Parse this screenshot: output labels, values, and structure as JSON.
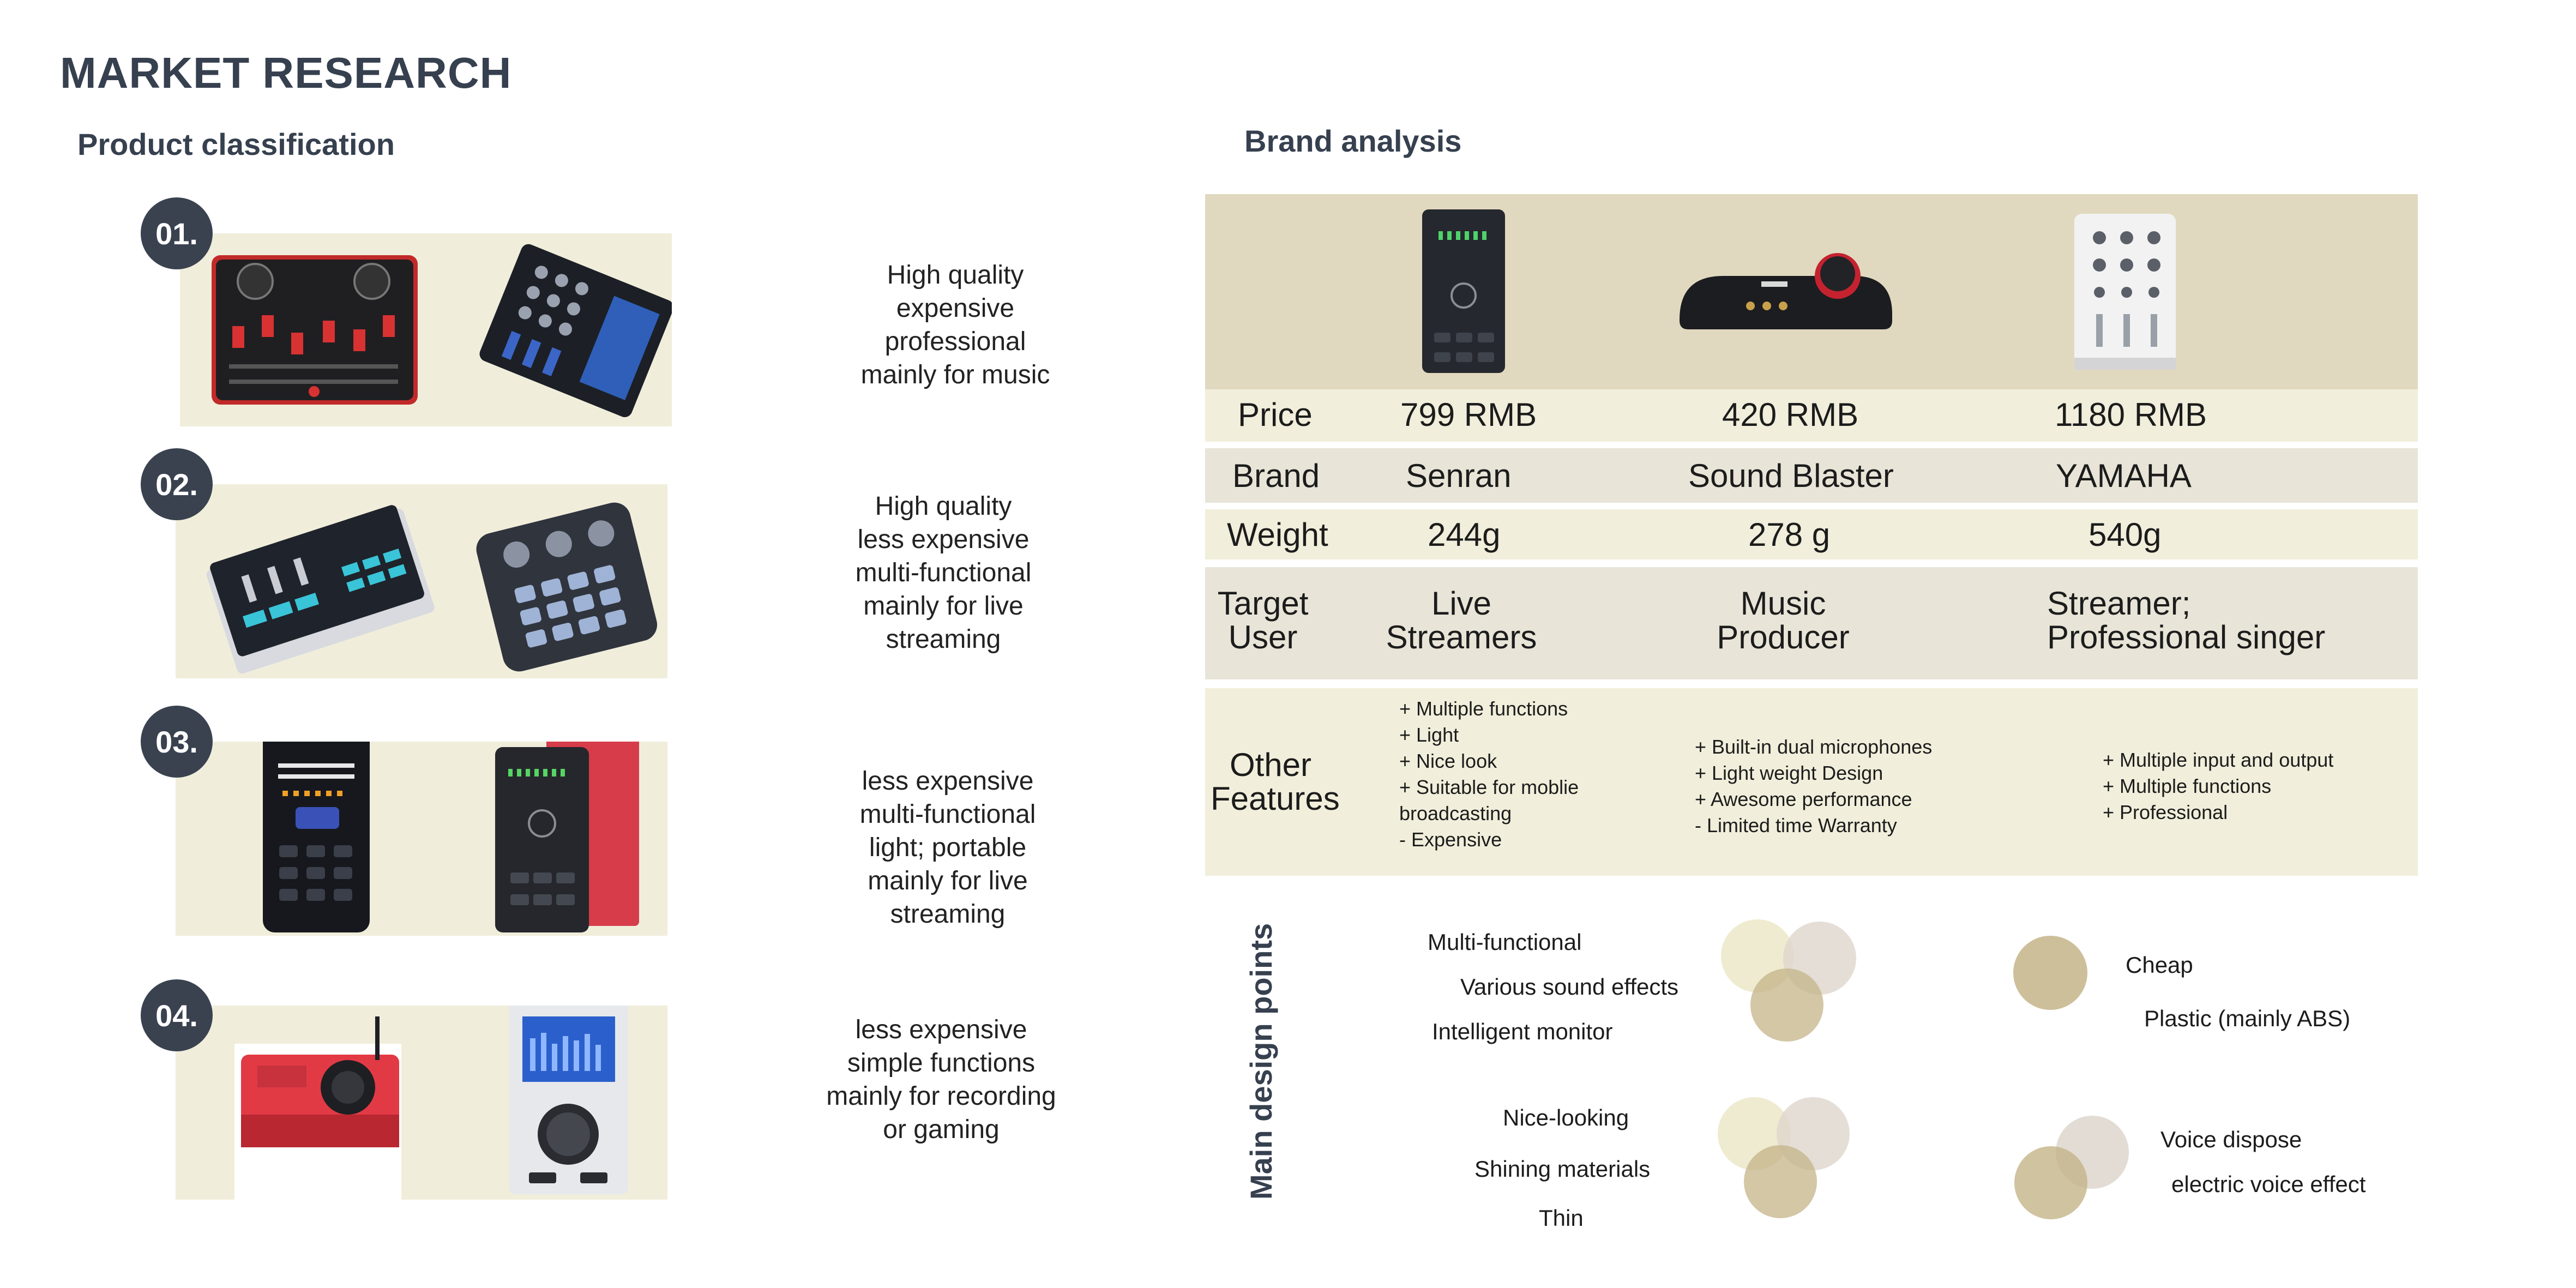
{
  "page": {
    "title": "MARKET RESEARCH",
    "left_heading": "Product classification",
    "right_heading": "Brand analysis"
  },
  "classification": [
    {
      "number": "01.",
      "description": [
        "High quality",
        "expensive",
        "professional",
        "mainly for music"
      ]
    },
    {
      "number": "02.",
      "description": [
        "High quality",
        "less expensive",
        "multi-functional",
        "mainly for live",
        "streaming"
      ]
    },
    {
      "number": "03.",
      "description": [
        "less expensive",
        "multi-functional",
        "light; portable",
        "mainly for live",
        "streaming"
      ]
    },
    {
      "number": "04.",
      "description": [
        "less expensive",
        "simple functions",
        "mainly for recording",
        "or gaming"
      ]
    }
  ],
  "brand_table": {
    "price": {
      "label": "Price",
      "values": [
        "799 RMB",
        "420 RMB",
        "1180 RMB"
      ]
    },
    "brand": {
      "label": "Brand",
      "values": [
        "Senran",
        "Sound Blaster",
        "YAMAHA"
      ]
    },
    "weight": {
      "label": "Weight",
      "values": [
        "244g",
        "278 g",
        "540g"
      ]
    },
    "target_user": {
      "label": [
        "Target",
        "User"
      ],
      "values": [
        [
          "Live",
          "Streamers"
        ],
        [
          "Music",
          "Producer"
        ],
        [
          "Streamer;",
          "Professional singer"
        ]
      ]
    },
    "other_features": {
      "label": [
        "Other",
        "Features"
      ],
      "values": [
        [
          "+ Multiple functions",
          "+ Light",
          "+ Nice look",
          "+ Suitable for moblie",
          "broadcasting",
          "- Expensive"
        ],
        [
          "+ Built-in dual microphones",
          "+ Light weight Design",
          "+ Awesome performance",
          "- Limited time Warranty"
        ],
        [
          "+ Multiple input and output",
          "+ Multiple functions",
          "+ Professional"
        ]
      ]
    }
  },
  "design_points": {
    "heading": "Main design points",
    "group1": [
      "Multi-functional",
      "Various sound effects",
      "Intelligent monitor"
    ],
    "group2": [
      "Cheap",
      "Plastic (mainly ABS)"
    ],
    "group3": [
      "Nice-looking",
      "Shining materials",
      "Thin"
    ],
    "group4": [
      "Voice dispose",
      "electric voice effect"
    ]
  },
  "colors": {
    "badge": "#3a4250",
    "panel_light": "#f0eedb",
    "panel_band": "#e1d9bf",
    "circle_light": "#ece7c8",
    "circle_grey": "#ddd6cc",
    "circle_gold": "#c4b488"
  }
}
